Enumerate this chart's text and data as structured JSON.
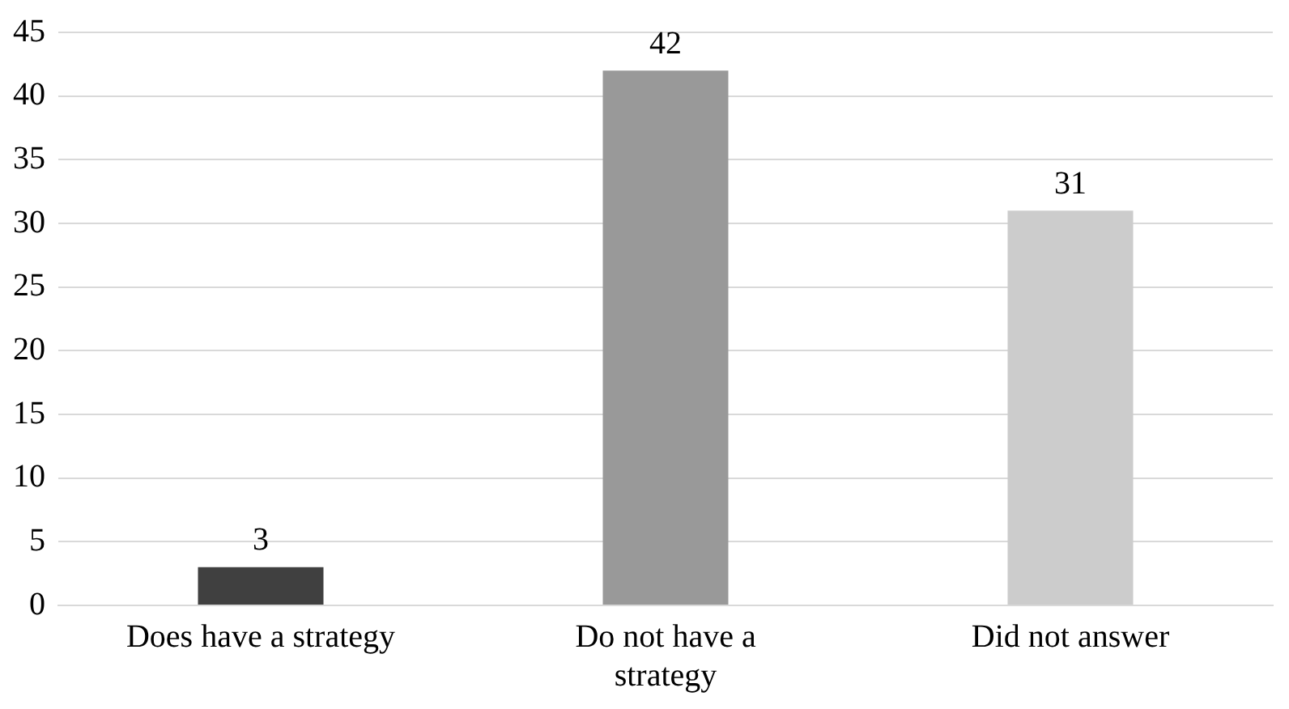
{
  "chart_data": {
    "type": "bar",
    "categories": [
      "Does have a strategy",
      "Do not have a strategy",
      "Did not answer"
    ],
    "values": [
      3,
      42,
      31
    ],
    "colors": [
      "#404040",
      "#999999",
      "#cccccc"
    ],
    "ylim": [
      0,
      45
    ],
    "yticks": [
      0,
      5,
      10,
      15,
      20,
      25,
      30,
      35,
      40,
      45
    ],
    "grid": "y",
    "data_labels": true,
    "legend": false
  }
}
